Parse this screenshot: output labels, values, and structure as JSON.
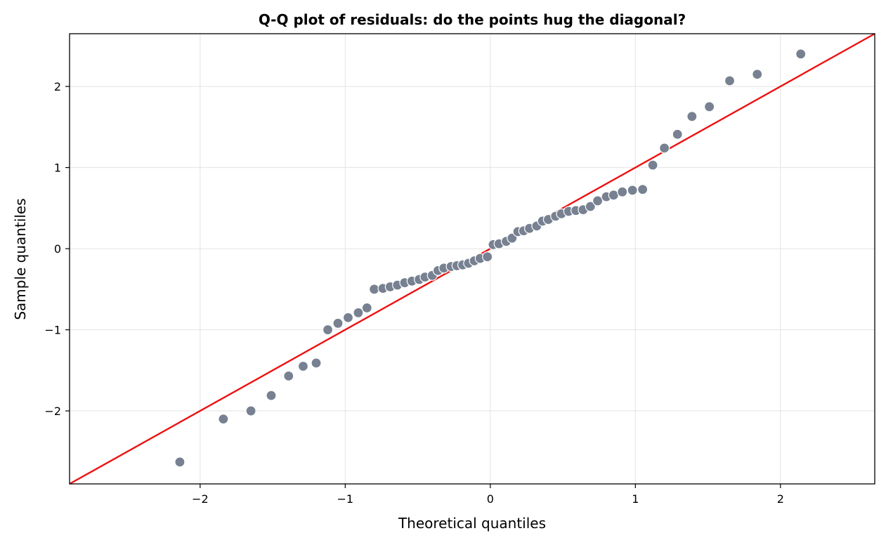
{
  "chart_data": {
    "type": "scatter",
    "title": "Q-Q plot of residuals: do the points hug the diagonal?",
    "xlabel": "Theoretical quantiles",
    "ylabel": "Sample quantiles",
    "xlim": [
      -2.9,
      2.65
    ],
    "ylim": [
      -2.9,
      2.65
    ],
    "xticks": [
      -2,
      -1,
      0,
      1,
      2
    ],
    "yticks": [
      -2,
      -1,
      0,
      1,
      2
    ],
    "xtick_labels": [
      "−2",
      "−1",
      "0",
      "1",
      "2"
    ],
    "ytick_labels": [
      "−2",
      "−1",
      "0",
      "1",
      "2"
    ],
    "grid": true,
    "point_color": "#778191",
    "line_color": "#ee1111",
    "reference_line": {
      "x": [
        -2.9,
        2.65
      ],
      "y": [
        -2.9,
        2.65
      ]
    },
    "points": [
      [
        -2.14,
        -2.63
      ],
      [
        -1.84,
        -2.1
      ],
      [
        -1.65,
        -2.0
      ],
      [
        -1.51,
        -1.81
      ],
      [
        -1.39,
        -1.57
      ],
      [
        -1.29,
        -1.45
      ],
      [
        -1.2,
        -1.41
      ],
      [
        -1.12,
        -1.0
      ],
      [
        -1.05,
        -0.92
      ],
      [
        -0.98,
        -0.85
      ],
      [
        -0.91,
        -0.79
      ],
      [
        -0.85,
        -0.73
      ],
      [
        -0.8,
        -0.5
      ],
      [
        -0.74,
        -0.49
      ],
      [
        -0.69,
        -0.47
      ],
      [
        -0.64,
        -0.45
      ],
      [
        -0.59,
        -0.42
      ],
      [
        -0.54,
        -0.4
      ],
      [
        -0.49,
        -0.38
      ],
      [
        -0.45,
        -0.35
      ],
      [
        -0.4,
        -0.33
      ],
      [
        -0.36,
        -0.27
      ],
      [
        -0.32,
        -0.24
      ],
      [
        -0.27,
        -0.22
      ],
      [
        -0.23,
        -0.21
      ],
      [
        -0.19,
        -0.2
      ],
      [
        -0.15,
        -0.18
      ],
      [
        -0.11,
        -0.15
      ],
      [
        -0.07,
        -0.12
      ],
      [
        -0.02,
        -0.1
      ],
      [
        0.02,
        0.05
      ],
      [
        0.06,
        0.06
      ],
      [
        0.11,
        0.09
      ],
      [
        0.15,
        0.13
      ],
      [
        0.19,
        0.21
      ],
      [
        0.23,
        0.22
      ],
      [
        0.27,
        0.25
      ],
      [
        0.32,
        0.28
      ],
      [
        0.36,
        0.34
      ],
      [
        0.4,
        0.36
      ],
      [
        0.45,
        0.4
      ],
      [
        0.49,
        0.43
      ],
      [
        0.54,
        0.46
      ],
      [
        0.59,
        0.47
      ],
      [
        0.64,
        0.48
      ],
      [
        0.69,
        0.52
      ],
      [
        0.74,
        0.59
      ],
      [
        0.8,
        0.64
      ],
      [
        0.85,
        0.66
      ],
      [
        0.91,
        0.7
      ],
      [
        0.98,
        0.72
      ],
      [
        1.05,
        0.73
      ],
      [
        1.12,
        1.03
      ],
      [
        1.2,
        1.24
      ],
      [
        1.29,
        1.41
      ],
      [
        1.39,
        1.63
      ],
      [
        1.51,
        1.75
      ],
      [
        1.65,
        2.07
      ],
      [
        1.84,
        2.15
      ],
      [
        2.14,
        2.4
      ]
    ]
  }
}
